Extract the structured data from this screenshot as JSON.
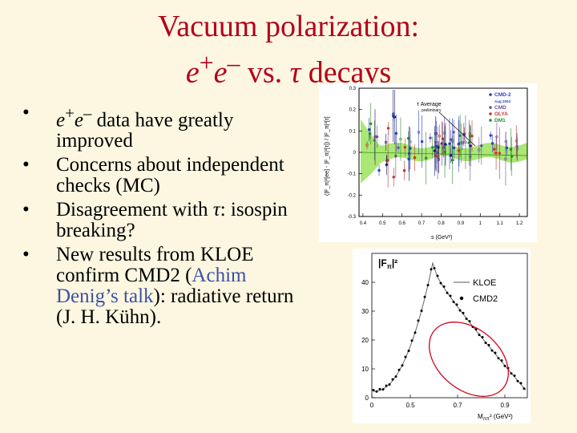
{
  "slide": {
    "title_line1": "Vacuum polarization:",
    "title_line2_pre": "e",
    "title_line2_sup1": "+",
    "title_line2_mid": "e",
    "title_line2_sup2": "–",
    "title_line2_post": " vs. ",
    "title_line2_tau": "τ",
    "title_line2_end": " decays",
    "title_color": "#b3001b",
    "background": "#fdf7e1"
  },
  "bullets": [
    {
      "pre": "e",
      "sup1": "+",
      "mid": "e",
      "sup2": "–",
      "text": " data have greatly improved"
    },
    {
      "text": "Concerns about independent checks (MC)"
    },
    {
      "text_a": "Disagreement with ",
      "tau": "τ",
      "text_b": ": isospin breaking?"
    },
    {
      "text_a": "New results from KLOE confirm CMD2 (",
      "link": "Achim Denig’s talk",
      "text_b": "): radiative return (J. H. Kühn)."
    }
  ],
  "figure_top": {
    "y_ticks": [
      "0.3",
      "0.2",
      "0.1",
      "0",
      "-0.1",
      "-0.2",
      "-0.3"
    ],
    "x_ticks": [
      "0.4",
      "0.5",
      "0.6",
      "0.7",
      "0.8",
      "0.9",
      "1",
      "1.1",
      "1.2"
    ],
    "x_label": "s  (GeV²)",
    "y_label": "(|F_π|²[ee] - |F_π|²[τ]) / |F_π|²[τ]",
    "band_label": "τ Average",
    "band_sublabel": "preliminary",
    "legend": [
      {
        "name": "CMD-2",
        "color": "#2a3fbf"
      },
      {
        "name": "Aug 2003",
        "color": "#2a3fbf"
      },
      {
        "name": "CMD",
        "color": "#6b4fa0"
      },
      {
        "name": "OLYA",
        "color": "#c0392b"
      },
      {
        "name": "DM1",
        "color": "#2e8b2e"
      }
    ]
  },
  "figure_bottom": {
    "y_label": "|F",
    "y_label_sub": "π",
    "y_label_end": "|²",
    "y_ticks": [
      "40",
      "30",
      "20",
      "10",
      "0"
    ],
    "x_ticks": [
      "0",
      "0.5",
      "0.7",
      "0.9"
    ],
    "x_label": "M",
    "x_label_sub": "ππ",
    "x_label_end": "² (GeV²)",
    "legend_kloe": "KLOE",
    "legend_cmd2": "CMD2",
    "ellipse_color": "#d0021b"
  }
}
